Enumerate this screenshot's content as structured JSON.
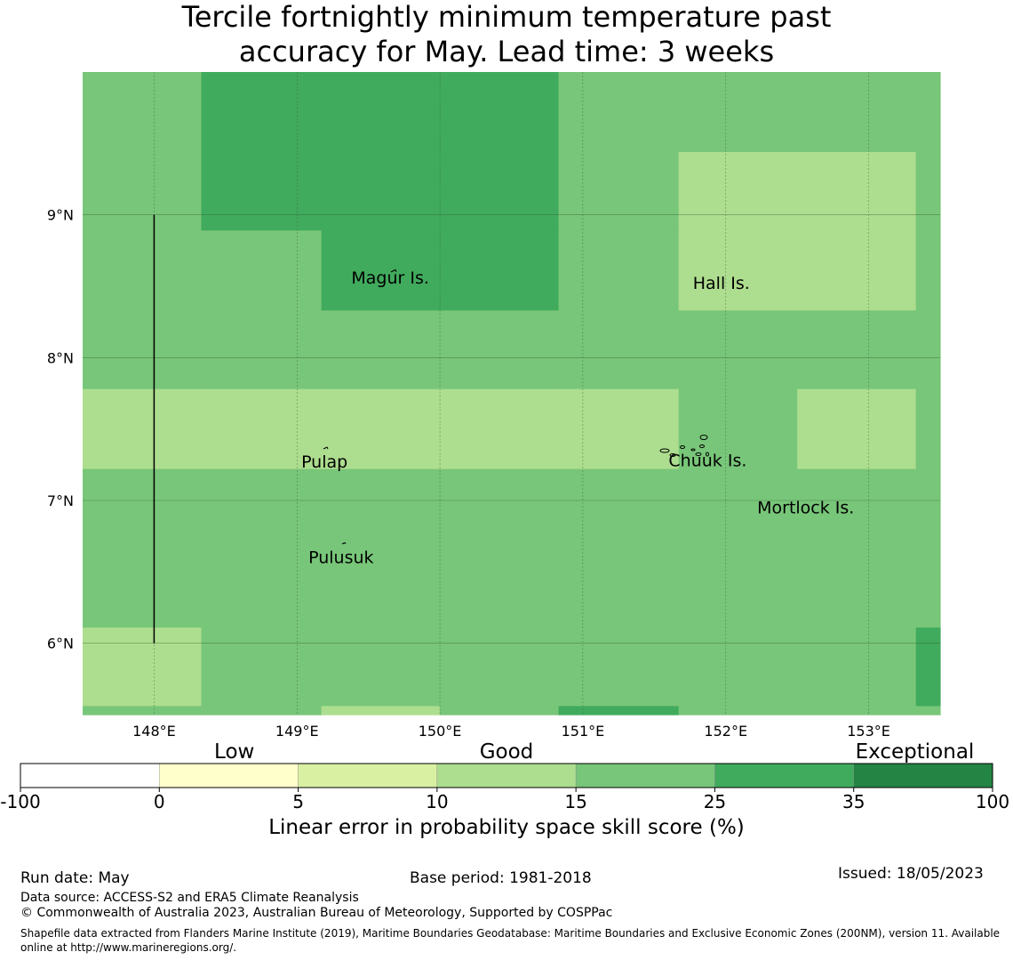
{
  "title_line1": "Tercile fortnightly minimum temperature past",
  "title_line2": "accuracy for May. Lead time: 3 weeks",
  "map": {
    "lon_range": [
      147.5,
      153.5
    ],
    "lat_range": [
      5.5,
      10.0
    ],
    "lat_ticks": [
      {
        "value": 9,
        "label": "9°N"
      },
      {
        "value": 8,
        "label": "8°N"
      },
      {
        "value": 7,
        "label": "7°N"
      },
      {
        "value": 6,
        "label": "6°N"
      }
    ],
    "lon_ticks": [
      {
        "value": 148,
        "label": "148°E"
      },
      {
        "value": 149,
        "label": "149°E"
      },
      {
        "value": 150,
        "label": "150°E"
      },
      {
        "value": 151,
        "label": "151°E"
      },
      {
        "value": 152,
        "label": "152°E"
      },
      {
        "value": 153,
        "label": "153°E"
      }
    ],
    "grid_cells": {
      "lon_edges": [
        147.5,
        148.33,
        149.17,
        150.0,
        150.83,
        151.67,
        152.5,
        153.33,
        153.5
      ],
      "lat_edges": [
        10.0,
        9.44,
        8.89,
        8.33,
        7.78,
        7.22,
        6.67,
        6.11,
        5.56,
        5.5
      ],
      "default_class": 4,
      "overrides": [
        {
          "c0": 1,
          "c1": 3,
          "r0": 0,
          "r1": 1,
          "class": 5
        },
        {
          "c0": 2,
          "c1": 3,
          "r0": 1,
          "r1": 2,
          "class": 5
        },
        {
          "c0": 5,
          "c1": 6,
          "r0": 1,
          "r1": 2,
          "class": 3
        },
        {
          "c0": 0,
          "c1": 2,
          "r0": 4,
          "r1": 4,
          "class": 3
        },
        {
          "c0": 3,
          "c1": 4,
          "r0": 4,
          "r1": 4,
          "class": 3
        },
        {
          "c0": 6,
          "c1": 6,
          "r0": 4,
          "r1": 4,
          "class": 3
        },
        {
          "c0": 0,
          "c1": 0,
          "r0": 7,
          "r1": 7,
          "class": 3
        },
        {
          "c0": 7,
          "c1": 7,
          "r0": 7,
          "r1": 7,
          "class": 5
        },
        {
          "c0": 2,
          "c1": 2,
          "r0": 8,
          "r1": 8,
          "class": 3
        },
        {
          "c0": 4,
          "c1": 4,
          "r0": 8,
          "r1": 8,
          "class": 5
        }
      ]
    },
    "boundary_line": {
      "lon": 148.0,
      "lat_from": 9.0,
      "lat_to": 6.0
    },
    "places": [
      {
        "name": "Magur Is.",
        "lon": 149.38,
        "lat": 8.52
      },
      {
        "name": "Hall Is.",
        "lon": 151.77,
        "lat": 8.48
      },
      {
        "name": "Pulap",
        "lon": 149.03,
        "lat": 7.23
      },
      {
        "name": "Chuuk Is.",
        "lon": 151.6,
        "lat": 7.24
      },
      {
        "name": "Mortlock Is.",
        "lon": 152.22,
        "lat": 6.91
      },
      {
        "name": "Pulusuk",
        "lon": 149.08,
        "lat": 6.56
      }
    ]
  },
  "colorbar": {
    "category_labels": [
      {
        "text": "Low",
        "position": 0.22
      },
      {
        "text": "Good",
        "position": 0.5
      },
      {
        "text": "Exceptional",
        "position": 0.92
      }
    ],
    "bins": [
      {
        "from": -100,
        "to": 0,
        "color": "#ffffff"
      },
      {
        "from": 0,
        "to": 5,
        "color": "#ffffcc"
      },
      {
        "from": 5,
        "to": 10,
        "color": "#d9f0a3"
      },
      {
        "from": 10,
        "to": 15,
        "color": "#addd8e"
      },
      {
        "from": 15,
        "to": 25,
        "color": "#78c679"
      },
      {
        "from": 25,
        "to": 35,
        "color": "#41ab5d"
      },
      {
        "from": 35,
        "to": 100,
        "color": "#238443"
      }
    ],
    "tick_labels": [
      "-100",
      "0",
      "5",
      "10",
      "15",
      "25",
      "35",
      "100"
    ],
    "title": "Linear error in probability space skill score (%)"
  },
  "footer": {
    "run_date": "Run date: May",
    "base_period": "Base period: 1981-2018",
    "issued": "Issued: 18/05/2023",
    "data_source": "Data source: ACCESS-S2 and ERA5 Climate Reanalysis",
    "copyright": "© Commonwealth of Australia 2023, Australian Bureau of Meteorology, Supported by COSPPac",
    "shapefile_note": "Shapefile data extracted from Flanders Marine Institute (2019), Maritime Boundaries Geodatabase: Maritime Boundaries and Exclusive Economic Zones (200NM), version 11. Available online at http://www.marineregions.org/."
  }
}
